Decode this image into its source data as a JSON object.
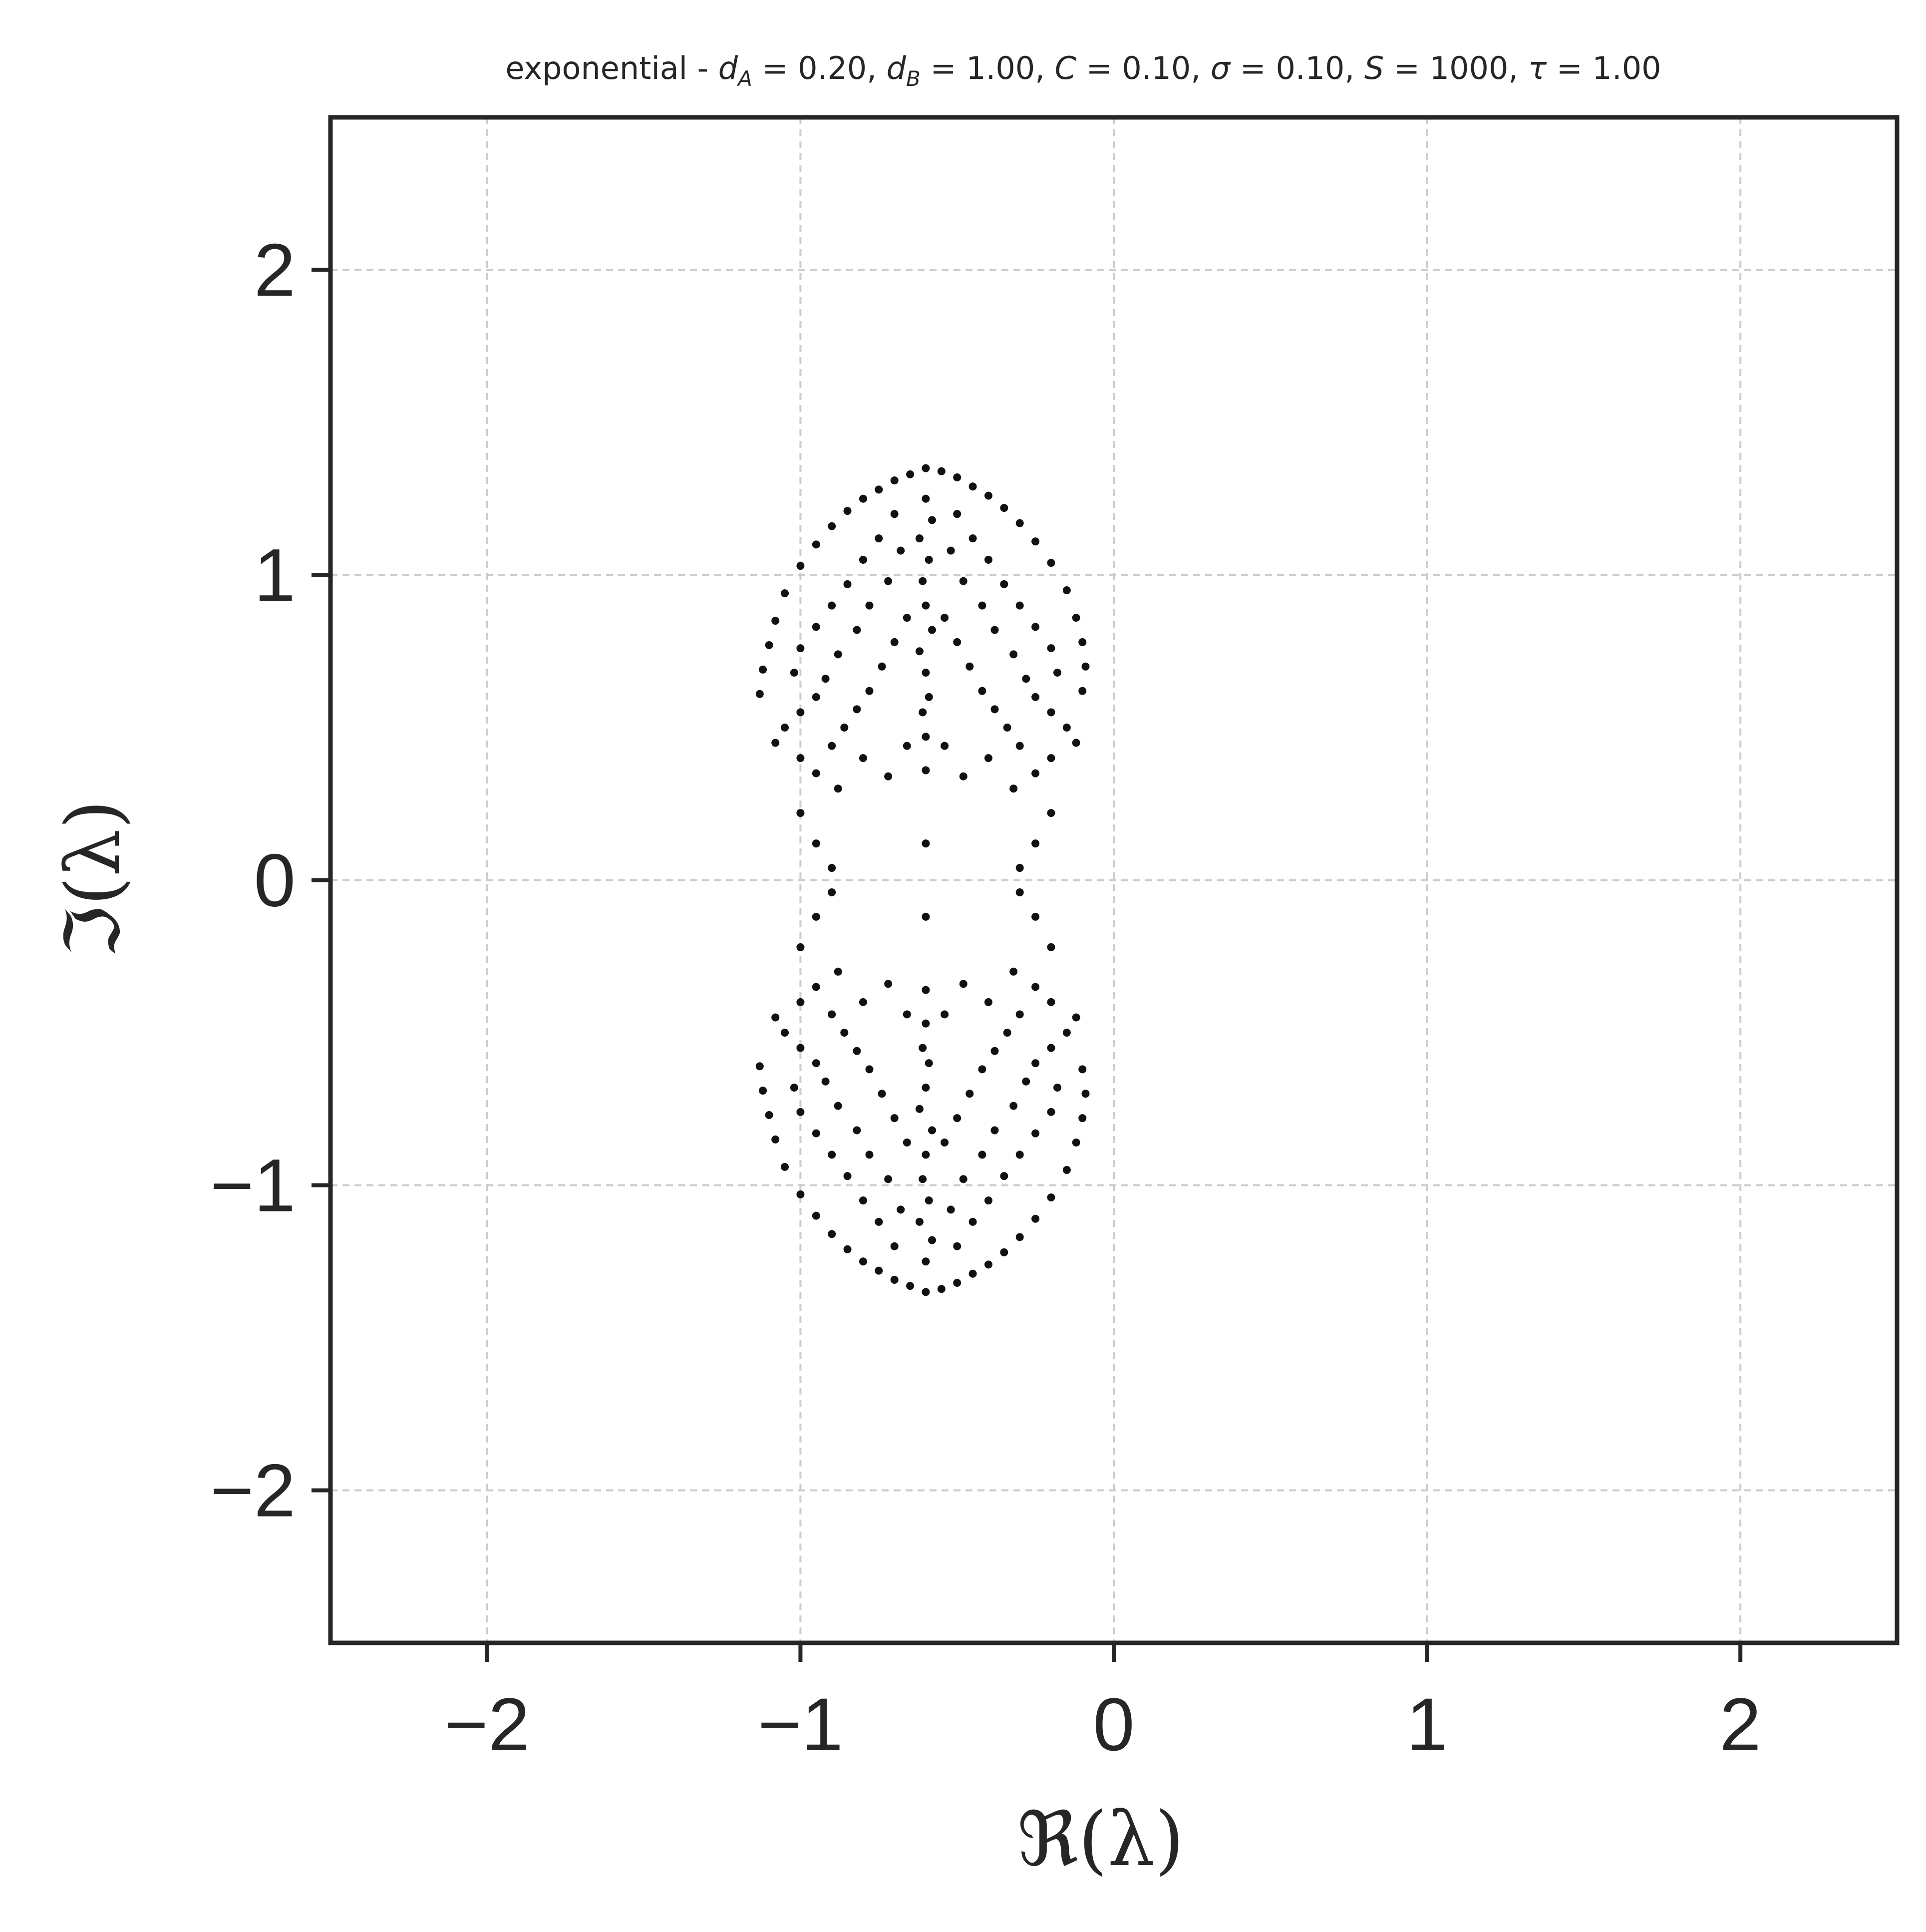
{
  "chart_data": {
    "type": "scatter",
    "title": "exponential - d_A = 0.20, d_B = 1.00, C = 0.10, σ = 0.10, S = 1000, τ = 1.00",
    "title_parts": {
      "prefix": "exponential - ",
      "dA_sym": "d",
      "dA_sub": "A",
      "dA_val": " = 0.20, ",
      "dB_sym": "d",
      "dB_sub": "B",
      "dB_val": " = 1.00, ",
      "C_sym": "C",
      "C_val": " = 0.10, ",
      "sigma_sym": "σ",
      "sigma_val": " = 0.10, ",
      "S_sym": "S",
      "S_val": " = 1000, ",
      "tau_sym": "τ",
      "tau_val": " = 1.00"
    },
    "xlabel": "ℜ(λ)",
    "ylabel": "ℑ(λ)",
    "xlim": [
      -2.5,
      2.5
    ],
    "ylim": [
      -2.5,
      2.5
    ],
    "xticks": [
      -2,
      -1,
      0,
      1,
      2
    ],
    "yticks": [
      -2,
      -1,
      0,
      1,
      2
    ],
    "xtick_labels": [
      "−2",
      "−1",
      "0",
      "1",
      "2"
    ],
    "ytick_labels": [
      "−2",
      "−1",
      "0",
      "1",
      "2"
    ],
    "grid": true,
    "grid_style": "dashed",
    "legend": "none",
    "marker_color": "#111111",
    "series": [
      {
        "description_points": "eigenvalue cloud: two lobes (upper and lower) centred near Re = -0.6, Im = ±0.9, lobe radius ≈ 0.5 in Re and 0.45 in Im, sparse neck between Im ≈ -0.45 and 0.45, isolated points near Im = 0",
        "points": [
          [
            -0.6,
            1.35
          ],
          [
            -0.55,
            1.34
          ],
          [
            -0.65,
            1.33
          ],
          [
            -0.5,
            1.32
          ],
          [
            -0.7,
            1.31
          ],
          [
            -0.45,
            1.29
          ],
          [
            -0.75,
            1.28
          ],
          [
            -0.4,
            1.26
          ],
          [
            -0.8,
            1.25
          ],
          [
            -0.35,
            1.22
          ],
          [
            -0.85,
            1.21
          ],
          [
            -0.3,
            1.17
          ],
          [
            -0.9,
            1.16
          ],
          [
            -0.25,
            1.11
          ],
          [
            -0.95,
            1.1
          ],
          [
            -0.2,
            1.04
          ],
          [
            -1.0,
            1.03
          ],
          [
            -0.15,
            0.95
          ],
          [
            -1.05,
            0.94
          ],
          [
            -0.12,
            0.86
          ],
          [
            -1.08,
            0.85
          ],
          [
            -0.1,
            0.78
          ],
          [
            -1.1,
            0.77
          ],
          [
            -0.09,
            0.7
          ],
          [
            -1.12,
            0.69
          ],
          [
            -0.1,
            0.62
          ],
          [
            -1.13,
            0.61
          ],
          [
            -0.6,
            1.25
          ],
          [
            -0.58,
            1.18
          ],
          [
            -0.62,
            1.12
          ],
          [
            -0.59,
            1.05
          ],
          [
            -0.61,
            0.98
          ],
          [
            -0.6,
            0.9
          ],
          [
            -0.58,
            0.82
          ],
          [
            -0.62,
            0.75
          ],
          [
            -0.6,
            0.68
          ],
          [
            -0.59,
            0.6
          ],
          [
            -0.61,
            0.55
          ],
          [
            -0.6,
            0.47
          ],
          [
            -0.6,
            0.36
          ],
          [
            -0.7,
            1.2
          ],
          [
            -0.5,
            1.2
          ],
          [
            -0.75,
            1.12
          ],
          [
            -0.45,
            1.12
          ],
          [
            -0.8,
            1.05
          ],
          [
            -0.4,
            1.05
          ],
          [
            -0.85,
            0.97
          ],
          [
            -0.35,
            0.97
          ],
          [
            -0.9,
            0.9
          ],
          [
            -0.3,
            0.9
          ],
          [
            -0.95,
            0.83
          ],
          [
            -0.25,
            0.83
          ],
          [
            -1.0,
            0.76
          ],
          [
            -0.2,
            0.76
          ],
          [
            -1.02,
            0.68
          ],
          [
            -0.18,
            0.68
          ],
          [
            -0.68,
            1.08
          ],
          [
            -0.52,
            1.08
          ],
          [
            -0.72,
            0.98
          ],
          [
            -0.48,
            0.98
          ],
          [
            -0.78,
            0.9
          ],
          [
            -0.42,
            0.9
          ],
          [
            -0.82,
            0.82
          ],
          [
            -0.38,
            0.82
          ],
          [
            -0.88,
            0.74
          ],
          [
            -0.32,
            0.74
          ],
          [
            -0.92,
            0.66
          ],
          [
            -0.28,
            0.66
          ],
          [
            -0.66,
            0.86
          ],
          [
            -0.54,
            0.86
          ],
          [
            -0.7,
            0.78
          ],
          [
            -0.5,
            0.78
          ],
          [
            -0.74,
            0.7
          ],
          [
            -0.46,
            0.7
          ],
          [
            -0.78,
            0.62
          ],
          [
            -0.42,
            0.62
          ],
          [
            -0.82,
            0.56
          ],
          [
            -0.38,
            0.56
          ],
          [
            -0.86,
            0.5
          ],
          [
            -0.34,
            0.5
          ],
          [
            -0.9,
            0.44
          ],
          [
            -0.3,
            0.44
          ],
          [
            -0.95,
            0.6
          ],
          [
            -0.25,
            0.6
          ],
          [
            -1.0,
            0.55
          ],
          [
            -0.2,
            0.55
          ],
          [
            -1.05,
            0.5
          ],
          [
            -0.15,
            0.5
          ],
          [
            -1.08,
            0.45
          ],
          [
            -0.12,
            0.45
          ],
          [
            -1.0,
            0.4
          ],
          [
            -0.2,
            0.4
          ],
          [
            -0.95,
            0.35
          ],
          [
            -0.25,
            0.35
          ],
          [
            -0.88,
            0.3
          ],
          [
            -0.32,
            0.3
          ],
          [
            -0.8,
            0.4
          ],
          [
            -0.4,
            0.4
          ],
          [
            -0.72,
            0.34
          ],
          [
            -0.48,
            0.34
          ],
          [
            -0.66,
            0.44
          ],
          [
            -0.54,
            0.44
          ],
          [
            -1.0,
            0.22
          ],
          [
            -0.2,
            0.22
          ],
          [
            -0.95,
            0.12
          ],
          [
            -0.25,
            0.12
          ],
          [
            -0.9,
            0.04
          ],
          [
            -0.3,
            0.04
          ],
          [
            -0.6,
            0.12
          ],
          [
            -0.6,
            -0.12
          ],
          [
            -1.0,
            -0.22
          ],
          [
            -0.2,
            -0.22
          ],
          [
            -0.95,
            -0.12
          ],
          [
            -0.25,
            -0.12
          ],
          [
            -0.9,
            -0.04
          ],
          [
            -0.3,
            -0.04
          ],
          [
            -0.6,
            -1.35
          ],
          [
            -0.55,
            -1.34
          ],
          [
            -0.65,
            -1.33
          ],
          [
            -0.5,
            -1.32
          ],
          [
            -0.7,
            -1.31
          ],
          [
            -0.45,
            -1.29
          ],
          [
            -0.75,
            -1.28
          ],
          [
            -0.4,
            -1.26
          ],
          [
            -0.8,
            -1.25
          ],
          [
            -0.35,
            -1.22
          ],
          [
            -0.85,
            -1.21
          ],
          [
            -0.3,
            -1.17
          ],
          [
            -0.9,
            -1.16
          ],
          [
            -0.25,
            -1.11
          ],
          [
            -0.95,
            -1.1
          ],
          [
            -0.2,
            -1.04
          ],
          [
            -1.0,
            -1.03
          ],
          [
            -0.15,
            -0.95
          ],
          [
            -1.05,
            -0.94
          ],
          [
            -0.12,
            -0.86
          ],
          [
            -1.08,
            -0.85
          ],
          [
            -0.1,
            -0.78
          ],
          [
            -1.1,
            -0.77
          ],
          [
            -0.09,
            -0.7
          ],
          [
            -1.12,
            -0.69
          ],
          [
            -0.1,
            -0.62
          ],
          [
            -1.13,
            -0.61
          ],
          [
            -0.6,
            -1.25
          ],
          [
            -0.58,
            -1.18
          ],
          [
            -0.62,
            -1.12
          ],
          [
            -0.59,
            -1.05
          ],
          [
            -0.61,
            -0.98
          ],
          [
            -0.6,
            -0.9
          ],
          [
            -0.58,
            -0.82
          ],
          [
            -0.62,
            -0.75
          ],
          [
            -0.6,
            -0.68
          ],
          [
            -0.59,
            -0.6
          ],
          [
            -0.61,
            -0.55
          ],
          [
            -0.6,
            -0.47
          ],
          [
            -0.6,
            -0.36
          ],
          [
            -0.7,
            -1.2
          ],
          [
            -0.5,
            -1.2
          ],
          [
            -0.75,
            -1.12
          ],
          [
            -0.45,
            -1.12
          ],
          [
            -0.8,
            -1.05
          ],
          [
            -0.4,
            -1.05
          ],
          [
            -0.85,
            -0.97
          ],
          [
            -0.35,
            -0.97
          ],
          [
            -0.9,
            -0.9
          ],
          [
            -0.3,
            -0.9
          ],
          [
            -0.95,
            -0.83
          ],
          [
            -0.25,
            -0.83
          ],
          [
            -1.0,
            -0.76
          ],
          [
            -0.2,
            -0.76
          ],
          [
            -1.02,
            -0.68
          ],
          [
            -0.18,
            -0.68
          ],
          [
            -0.68,
            -1.08
          ],
          [
            -0.52,
            -1.08
          ],
          [
            -0.72,
            -0.98
          ],
          [
            -0.48,
            -0.98
          ],
          [
            -0.78,
            -0.9
          ],
          [
            -0.42,
            -0.9
          ],
          [
            -0.82,
            -0.82
          ],
          [
            -0.38,
            -0.82
          ],
          [
            -0.88,
            -0.74
          ],
          [
            -0.32,
            -0.74
          ],
          [
            -0.92,
            -0.66
          ],
          [
            -0.28,
            -0.66
          ],
          [
            -0.66,
            -0.86
          ],
          [
            -0.54,
            -0.86
          ],
          [
            -0.7,
            -0.78
          ],
          [
            -0.5,
            -0.78
          ],
          [
            -0.74,
            -0.7
          ],
          [
            -0.46,
            -0.7
          ],
          [
            -0.78,
            -0.62
          ],
          [
            -0.42,
            -0.62
          ],
          [
            -0.82,
            -0.56
          ],
          [
            -0.38,
            -0.56
          ],
          [
            -0.86,
            -0.5
          ],
          [
            -0.34,
            -0.5
          ],
          [
            -0.9,
            -0.44
          ],
          [
            -0.3,
            -0.44
          ],
          [
            -0.95,
            -0.6
          ],
          [
            -0.25,
            -0.6
          ],
          [
            -1.0,
            -0.55
          ],
          [
            -0.2,
            -0.55
          ],
          [
            -1.05,
            -0.5
          ],
          [
            -0.15,
            -0.5
          ],
          [
            -1.08,
            -0.45
          ],
          [
            -0.12,
            -0.45
          ],
          [
            -1.0,
            -0.4
          ],
          [
            -0.2,
            -0.4
          ],
          [
            -0.95,
            -0.35
          ],
          [
            -0.25,
            -0.35
          ],
          [
            -0.88,
            -0.3
          ],
          [
            -0.32,
            -0.3
          ],
          [
            -0.8,
            -0.4
          ],
          [
            -0.4,
            -0.4
          ],
          [
            -0.72,
            -0.34
          ],
          [
            -0.48,
            -0.34
          ],
          [
            -0.66,
            -0.44
          ],
          [
            -0.54,
            -0.44
          ]
        ]
      }
    ]
  }
}
